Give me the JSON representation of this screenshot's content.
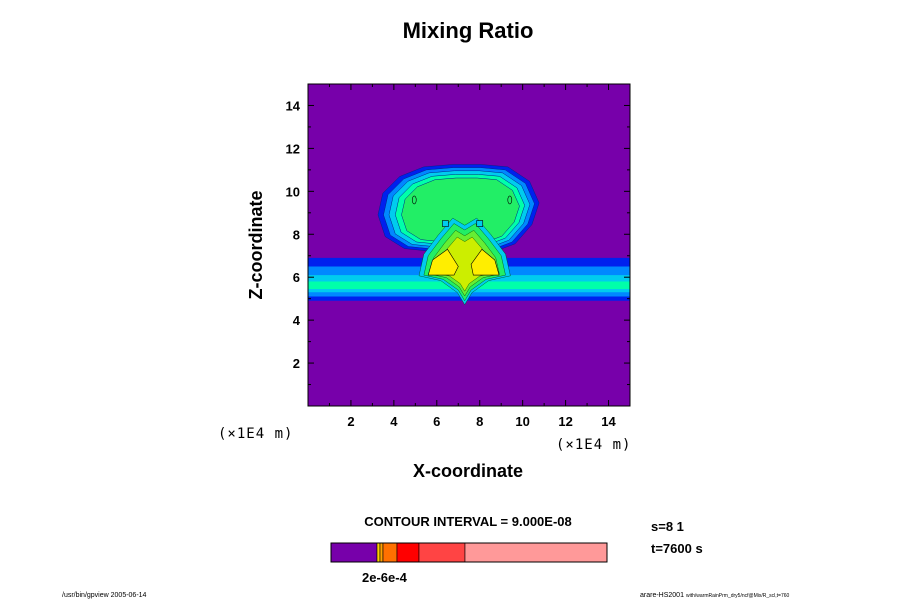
{
  "chart_data": {
    "type": "heatmap",
    "title": "Mixing Ratio",
    "xlabel": "X-coordinate",
    "ylabel": "Z-coordinate",
    "x_unit": "(×1E4 m)",
    "y_unit": "(×1E4 m)",
    "xlim": [
      0,
      15
    ],
    "ylim": [
      0,
      15
    ],
    "x_ticks": [
      2,
      4,
      6,
      8,
      10,
      12,
      14
    ],
    "y_ticks": [
      2,
      4,
      6,
      8,
      10,
      12,
      14
    ],
    "x_tick_labels": [
      "2",
      "4",
      "6",
      "8",
      "10",
      "12",
      "14"
    ],
    "y_tick_labels": [
      "2",
      "4",
      "6",
      "8",
      "10",
      "12",
      "14"
    ],
    "contour_interval_text": "CONTOUR INTERVAL = 9.000E-08",
    "colorbar": {
      "label_text": "2e-6e-4",
      "colors": [
        "#7700aa",
        "#ffd000",
        "#ffa000",
        "#ff7000",
        "#ff0000",
        "#ff4444",
        "#ff9999"
      ]
    },
    "stats": {
      "s_text": "s=8 1",
      "t_text": "t=7600 s"
    },
    "footer": {
      "left_text": "/usr/bin/gpview 2005-06-14",
      "right_main": "arare-HS2001",
      "right_small": "with/warmRainPrm_dry5/ncf@Mix/R_scl,t=760"
    },
    "field_colors": {
      "background": "#7700aa",
      "level1": "#0020ee",
      "level2": "#0088ff",
      "level3": "#00ccee",
      "level4": "#00ffaa",
      "level5": "#22ee66",
      "level6": "#66ee33",
      "level7": "#ccee00",
      "level8": "#ffee00"
    }
  }
}
